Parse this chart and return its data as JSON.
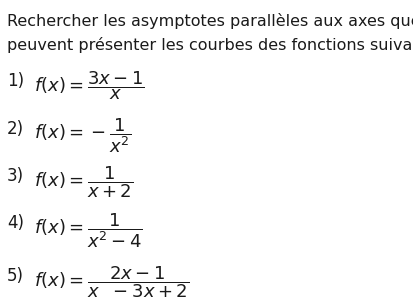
{
  "background_color": "#ffffff",
  "text_color": "#1a1a1a",
  "title_line1": "Rechercher les asymptotes parallèles aux axes que",
  "title_line2": "peuvent présenter les courbes des fonctions suivantes :",
  "items": [
    {
      "number": "1)",
      "latex": "$f(x)=\\dfrac{3x-1}{x}$"
    },
    {
      "number": "2)",
      "latex": "$f(x)=-\\dfrac{1}{x^2}$"
    },
    {
      "number": "3)",
      "latex": "$f(x)=\\dfrac{1}{x+2}$"
    },
    {
      "number": "4)",
      "latex": "$f(x)=\\dfrac{1}{x^2-4}$"
    },
    {
      "number": "5)",
      "latex": "$f(x)=\\dfrac{2x-1}{x\\phantom{x}-3x+2}$"
    }
  ],
  "title_fontsize": 11.5,
  "item_fontsize": 13,
  "number_fontsize": 12
}
